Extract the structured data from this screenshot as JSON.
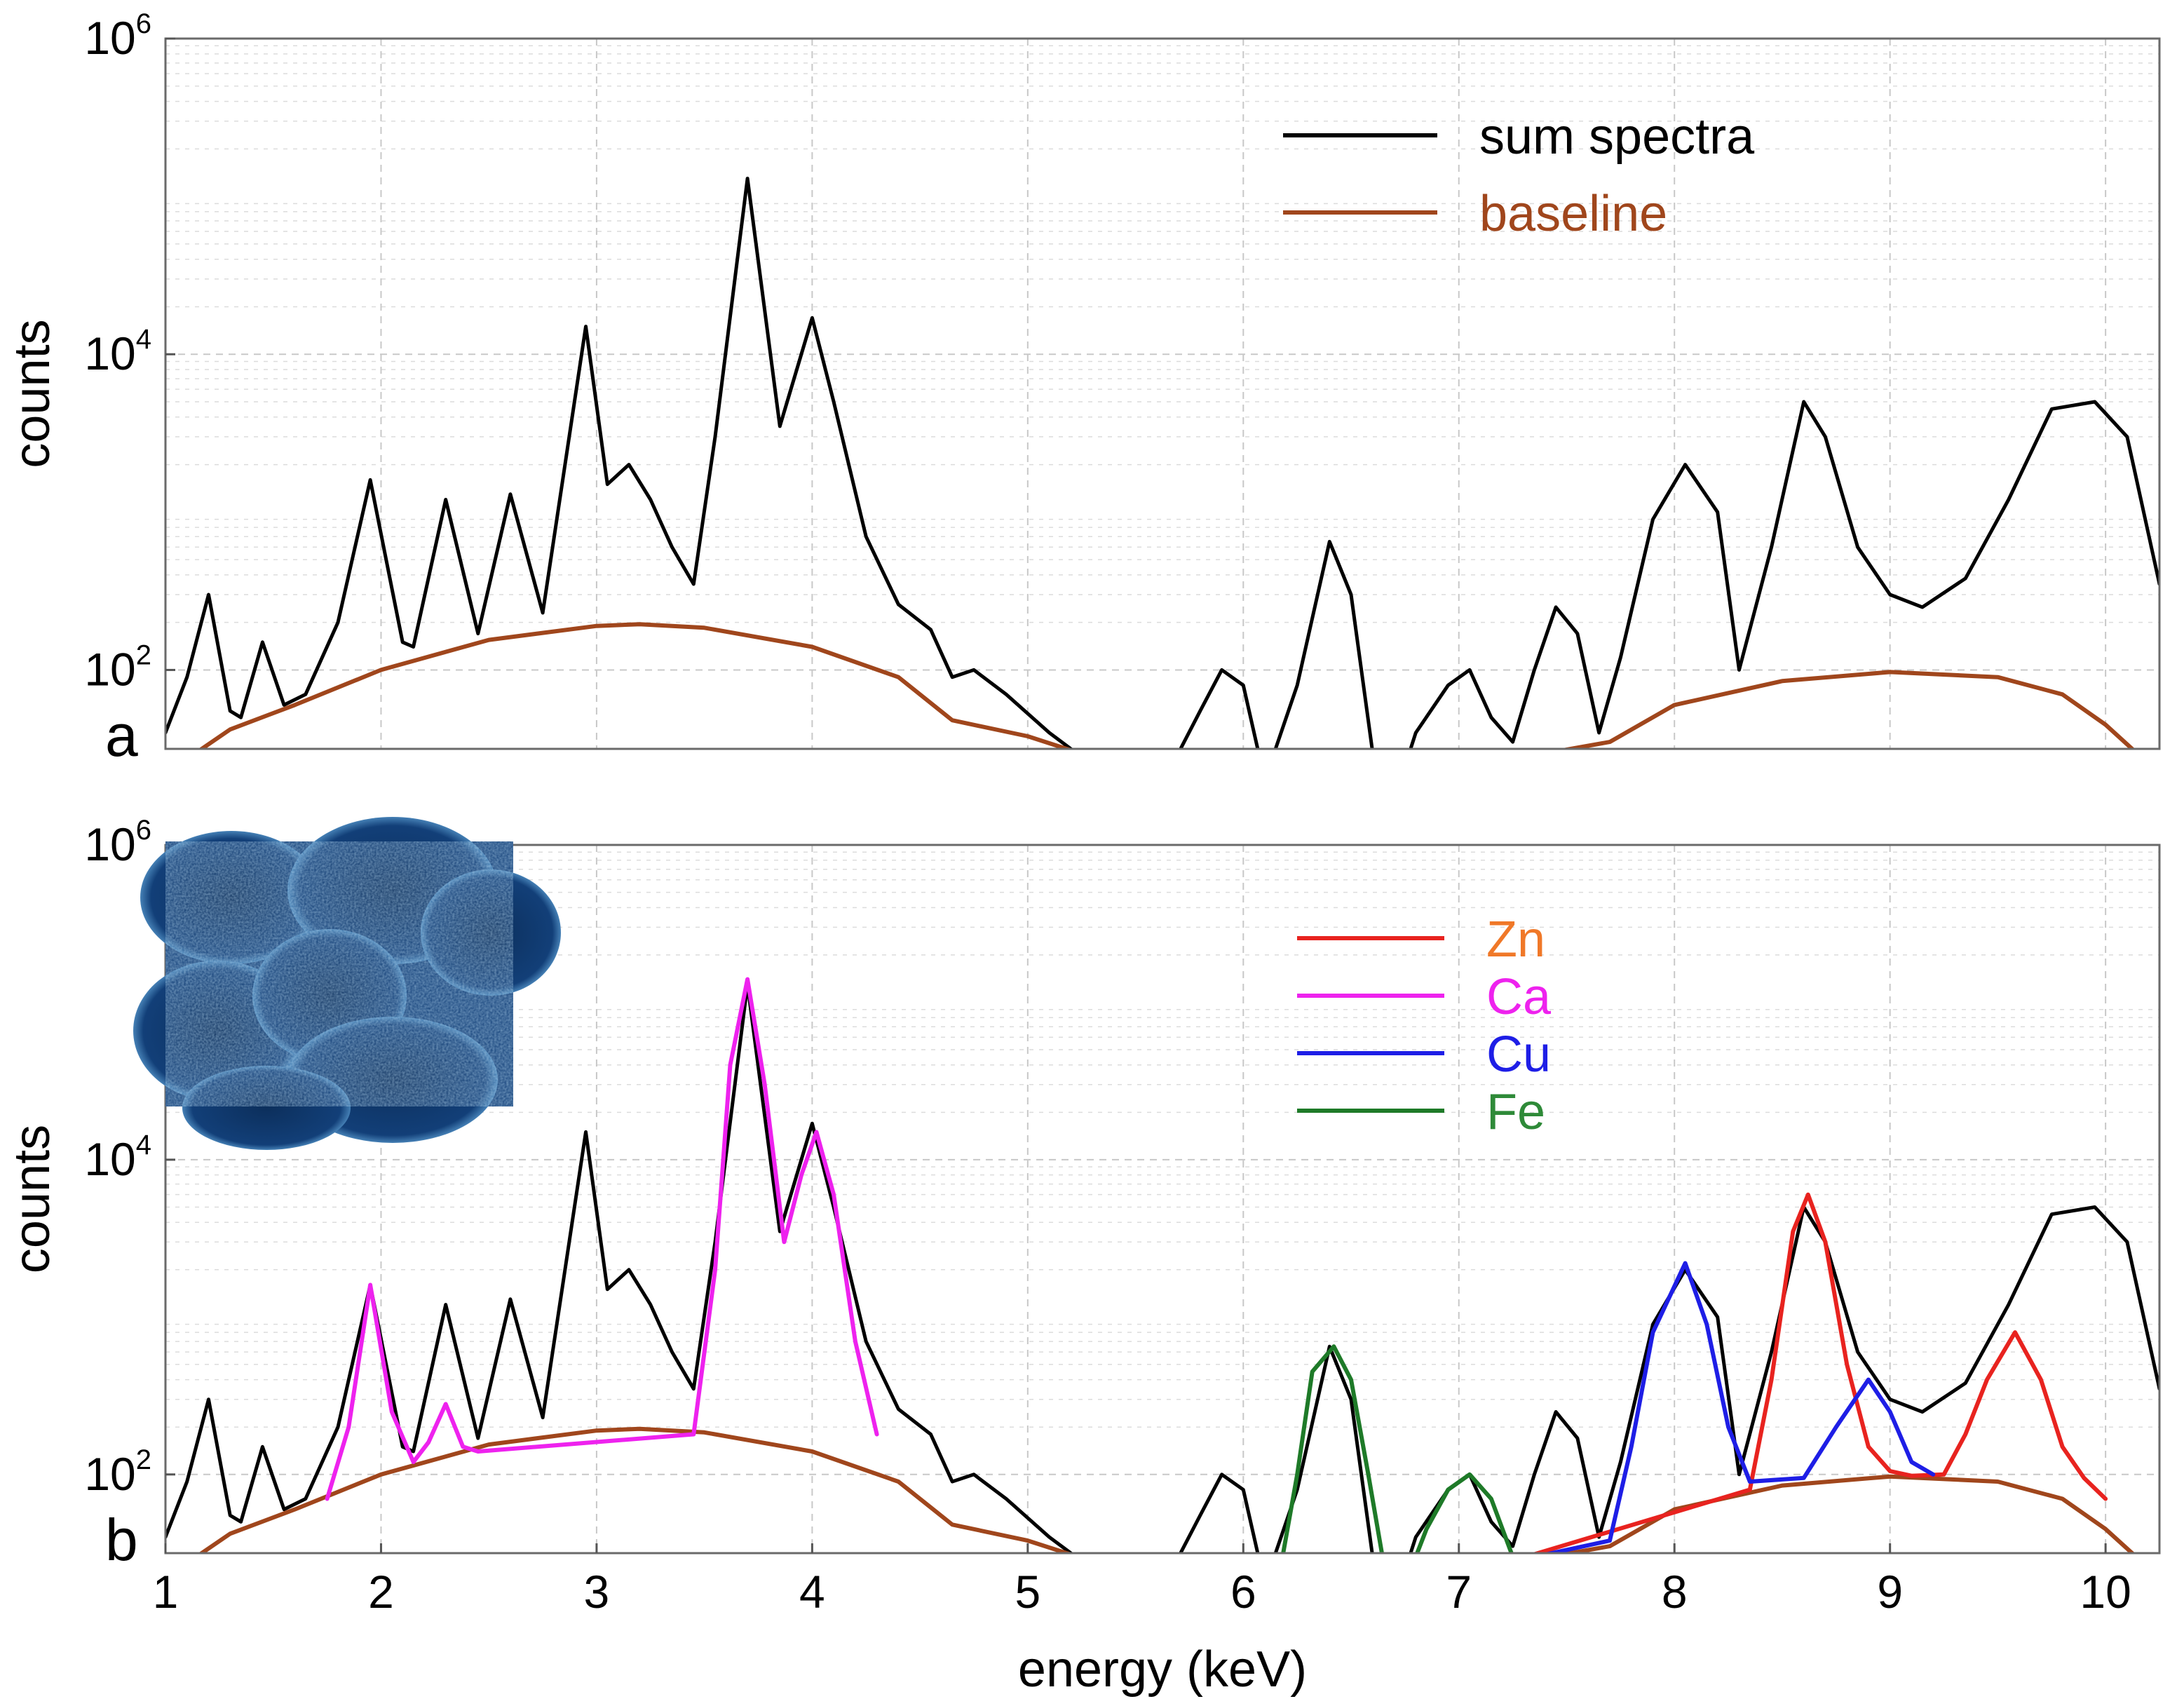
{
  "chart_data": [
    {
      "panel_label": "a",
      "type": "line",
      "yscale": "log",
      "xlim": [
        1.0,
        10.25
      ],
      "ylim_log10": [
        1.5,
        6.0
      ],
      "x_ticks": [
        1,
        2,
        3,
        4,
        5,
        6,
        7,
        8,
        9,
        10
      ],
      "y_ticks": [
        {
          "value": 100,
          "base": "10",
          "exponent": "2"
        },
        {
          "value": 10000,
          "base": "10",
          "exponent": "4"
        },
        {
          "value": 1000000,
          "base": "10",
          "exponent": "6"
        }
      ],
      "ylabel": "counts",
      "xlabel": "",
      "grid": true,
      "legend_position": "top-right",
      "series": [
        {
          "name": "sum spectra",
          "color": "#000000",
          "x": [
            1.0,
            1.1,
            1.2,
            1.3,
            1.35,
            1.45,
            1.55,
            1.65,
            1.8,
            1.95,
            2.1,
            2.15,
            2.3,
            2.45,
            2.6,
            2.75,
            2.95,
            3.05,
            3.15,
            3.25,
            3.35,
            3.45,
            3.55,
            3.7,
            3.85,
            4.0,
            4.1,
            4.25,
            4.4,
            4.55,
            4.65,
            4.75,
            4.9,
            5.1,
            5.3,
            5.45,
            5.55,
            5.7,
            5.8,
            5.9,
            6.0,
            6.1,
            6.25,
            6.4,
            6.5,
            6.6,
            6.7,
            6.8,
            6.95,
            7.05,
            7.15,
            7.25,
            7.35,
            7.45,
            7.55,
            7.65,
            7.75,
            7.9,
            8.05,
            8.2,
            8.3,
            8.45,
            8.6,
            8.7,
            8.85,
            9.0,
            9.15,
            9.35,
            9.55,
            9.75,
            9.95,
            10.1,
            10.25
          ],
          "y": [
            40,
            90,
            300,
            55,
            50,
            150,
            60,
            70,
            200,
            1600,
            150,
            140,
            1200,
            170,
            1300,
            230,
            15000,
            1500,
            2000,
            1200,
            600,
            350,
            3000,
            130000,
            3500,
            17000,
            5000,
            700,
            260,
            180,
            90,
            100,
            70,
            40,
            25,
            18,
            16,
            30,
            55,
            100,
            80,
            20,
            80,
            650,
            300,
            30,
            15,
            40,
            80,
            100,
            50,
            35,
            100,
            250,
            170,
            40,
            120,
            900,
            2000,
            1000,
            100,
            600,
            5000,
            3000,
            600,
            300,
            250,
            380,
            1200,
            4500,
            5000,
            3000,
            350
          ]
        },
        {
          "name": "baseline",
          "color": "#a0461c",
          "x": [
            1.0,
            1.3,
            1.6,
            2.0,
            2.5,
            3.0,
            3.2,
            3.5,
            4.0,
            4.4,
            4.65,
            5.0,
            5.3,
            5.55,
            5.8,
            6.2,
            6.7,
            7.0,
            7.3,
            7.7,
            8.0,
            8.5,
            9.0,
            9.5,
            9.8,
            10.0,
            10.25
          ],
          "y": [
            22,
            42,
            60,
            100,
            155,
            190,
            195,
            185,
            140,
            90,
            48,
            38,
            28,
            18,
            16,
            16,
            15,
            20,
            28,
            35,
            60,
            85,
            97,
            90,
            70,
            45,
            22
          ]
        }
      ]
    },
    {
      "panel_label": "b",
      "type": "line",
      "yscale": "log",
      "xlim": [
        1.0,
        10.25
      ],
      "ylim_log10": [
        1.5,
        6.0
      ],
      "x_ticks": [
        1,
        2,
        3,
        4,
        5,
        6,
        7,
        8,
        9,
        10
      ],
      "y_ticks": [
        {
          "value": 100,
          "base": "10",
          "exponent": "2"
        },
        {
          "value": 10000,
          "base": "10",
          "exponent": "4"
        },
        {
          "value": 1000000,
          "base": "10",
          "exponent": "6"
        }
      ],
      "ylabel": "counts",
      "xlabel": "energy (keV)",
      "grid": true,
      "legend_position": "top-right",
      "inset_image": "blue fluorescence micrograph (top-left)",
      "series": [
        {
          "name": "sum spectra",
          "color": "#000000",
          "in_legend": false,
          "x": [
            1.0,
            1.1,
            1.2,
            1.3,
            1.35,
            1.45,
            1.55,
            1.65,
            1.8,
            1.95,
            2.1,
            2.15,
            2.3,
            2.45,
            2.6,
            2.75,
            2.95,
            3.05,
            3.15,
            3.25,
            3.35,
            3.45,
            3.55,
            3.7,
            3.85,
            4.0,
            4.1,
            4.25,
            4.4,
            4.55,
            4.65,
            4.75,
            4.9,
            5.1,
            5.3,
            5.45,
            5.55,
            5.7,
            5.8,
            5.9,
            6.0,
            6.1,
            6.25,
            6.4,
            6.5,
            6.6,
            6.7,
            6.8,
            6.95,
            7.05,
            7.15,
            7.25,
            7.35,
            7.45,
            7.55,
            7.65,
            7.75,
            7.9,
            8.05,
            8.2,
            8.3,
            8.45,
            8.6,
            8.7,
            8.85,
            9.0,
            9.15,
            9.35,
            9.55,
            9.75,
            9.95,
            10.1,
            10.25
          ],
          "y": [
            40,
            90,
            300,
            55,
            50,
            150,
            60,
            70,
            200,
            1600,
            150,
            140,
            1200,
            170,
            1300,
            230,
            15000,
            1500,
            2000,
            1200,
            600,
            350,
            3000,
            130000,
            3500,
            17000,
            5000,
            700,
            260,
            180,
            90,
            100,
            70,
            40,
            25,
            18,
            16,
            30,
            55,
            100,
            80,
            20,
            80,
            650,
            300,
            30,
            15,
            40,
            80,
            100,
            50,
            35,
            100,
            250,
            170,
            40,
            120,
            900,
            2000,
            1000,
            100,
            600,
            5000,
            3000,
            600,
            300,
            250,
            380,
            1200,
            4500,
            5000,
            3000,
            350
          ]
        },
        {
          "name": "baseline",
          "color": "#a0461c",
          "in_legend": false,
          "x": [
            1.0,
            1.3,
            1.6,
            2.0,
            2.5,
            3.0,
            3.2,
            3.5,
            4.0,
            4.4,
            4.65,
            5.0,
            5.3,
            5.55,
            5.8,
            6.2,
            6.7,
            7.0,
            7.3,
            7.7,
            8.0,
            8.5,
            9.0,
            9.5,
            9.8,
            10.0,
            10.25
          ],
          "y": [
            22,
            42,
            60,
            100,
            155,
            190,
            195,
            185,
            140,
            90,
            48,
            38,
            28,
            18,
            16,
            16,
            15,
            20,
            28,
            35,
            60,
            85,
            97,
            90,
            70,
            45,
            22
          ]
        },
        {
          "name": "Zn",
          "color": "#e8231f",
          "label_color": "#f07828",
          "x": [
            6.7,
            6.8,
            6.9,
            7.0,
            7.1,
            7.2,
            8.35,
            8.45,
            8.55,
            8.62,
            8.7,
            8.8,
            8.9,
            9.0,
            9.1,
            9.25,
            9.35,
            9.45,
            9.58,
            9.7,
            9.8,
            9.9,
            10.0
          ],
          "y": [
            16,
            20,
            24,
            20,
            23,
            27,
            80,
            400,
            3500,
            6000,
            3000,
            500,
            150,
            105,
            98,
            100,
            180,
            400,
            800,
            400,
            150,
            95,
            70
          ]
        },
        {
          "name": "Ca",
          "color": "#ee22ee",
          "label_color": "#ee22ee",
          "x": [
            1.75,
            1.85,
            1.95,
            2.05,
            2.15,
            2.22,
            2.3,
            2.38,
            2.45,
            3.45,
            3.55,
            3.62,
            3.7,
            3.78,
            3.87,
            3.95,
            4.02,
            4.1,
            4.2,
            4.3
          ],
          "y": [
            70,
            200,
            1600,
            250,
            120,
            160,
            280,
            150,
            140,
            180,
            2000,
            40000,
            140000,
            30000,
            3000,
            8000,
            15000,
            6000,
            700,
            180
          ]
        },
        {
          "name": "Cu",
          "color": "#1e1ee6",
          "label_color": "#1e1ee6",
          "x": [
            6.15,
            6.25,
            6.3,
            6.4,
            6.5,
            6.7,
            7.1,
            7.2,
            7.7,
            7.8,
            7.9,
            8.05,
            8.15,
            8.25,
            8.35,
            8.6,
            8.75,
            8.9,
            9.0,
            9.1,
            9.2
          ],
          "y": [
            16,
            19,
            21,
            18,
            16,
            15,
            25,
            27,
            38,
            150,
            800,
            2200,
            900,
            200,
            90,
            95,
            200,
            400,
            250,
            120,
            100
          ]
        },
        {
          "name": "Fe",
          "color": "#1e7a28",
          "label_color": "#2e8a38",
          "x": [
            6.15,
            6.25,
            6.32,
            6.42,
            6.5,
            6.58,
            6.68,
            6.75,
            6.85,
            6.95,
            7.05,
            7.15,
            7.25,
            7.3
          ],
          "y": [
            17,
            100,
            450,
            650,
            400,
            100,
            16,
            20,
            45,
            80,
            100,
            70,
            30,
            28
          ]
        }
      ]
    }
  ],
  "legend_a": {
    "sum_spectra": "sum spectra",
    "baseline": "baseline"
  },
  "legend_b": {
    "zn": "Zn",
    "ca": "Ca",
    "cu": "Cu",
    "fe": "Fe"
  }
}
